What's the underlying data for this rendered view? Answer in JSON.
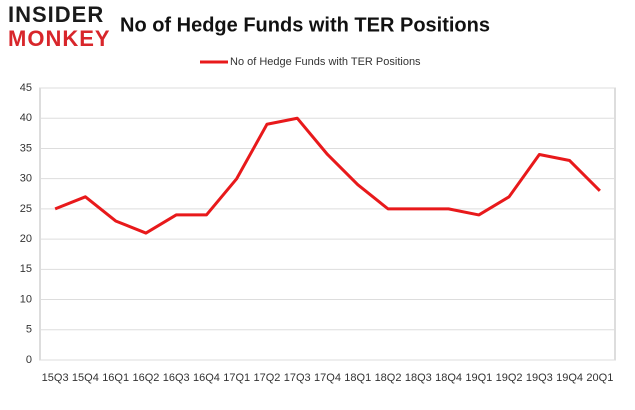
{
  "logo": {
    "line1": "INSIDER",
    "line2": "MONKEY"
  },
  "chart_data": {
    "type": "line",
    "title": "No of Hedge Funds with TER Positions",
    "categories": [
      "15Q3",
      "15Q4",
      "16Q1",
      "16Q2",
      "16Q3",
      "16Q4",
      "17Q1",
      "17Q2",
      "17Q3",
      "17Q4",
      "18Q1",
      "18Q2",
      "18Q3",
      "18Q4",
      "19Q1",
      "19Q2",
      "19Q3",
      "19Q4",
      "20Q1"
    ],
    "series": [
      {
        "name": "No of Hedge Funds with TER Positions",
        "color": "#e8191b",
        "values": [
          25,
          27,
          23,
          21,
          24,
          24,
          30,
          39,
          40,
          34,
          29,
          25,
          25,
          25,
          24,
          27,
          34,
          33,
          28
        ]
      }
    ],
    "ylim": [
      0,
      45
    ],
    "yticks": [
      0,
      5,
      10,
      15,
      20,
      25,
      30,
      35,
      40,
      45
    ],
    "grid": true,
    "legend": "top"
  }
}
